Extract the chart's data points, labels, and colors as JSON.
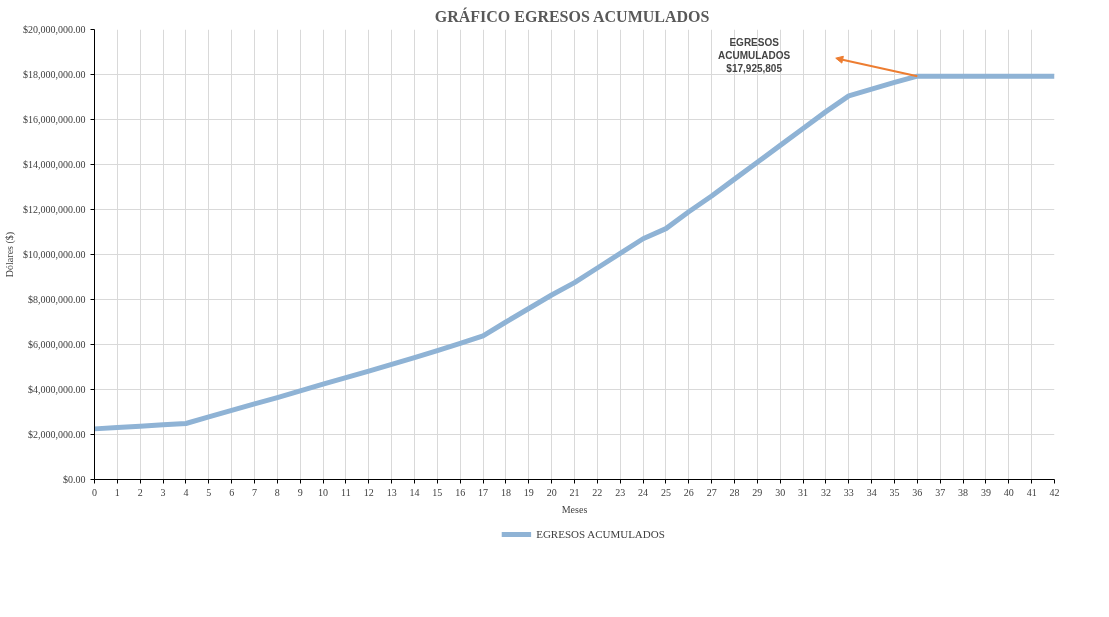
{
  "chart_data": {
    "type": "line",
    "title": "GRÁFICO EGRESOS  ACUMULADOS",
    "xlabel": "Meses",
    "ylabel": "Dólares ($)",
    "x": [
      0,
      1,
      2,
      3,
      4,
      5,
      6,
      7,
      8,
      9,
      10,
      11,
      12,
      13,
      14,
      15,
      16,
      17,
      18,
      19,
      20,
      21,
      22,
      23,
      24,
      25,
      26,
      27,
      28,
      29,
      30,
      31,
      32,
      33,
      34,
      35,
      36,
      37,
      38,
      39,
      40,
      41,
      42
    ],
    "series": [
      {
        "name": "EGRESOS ACUMULADOS",
        "color": "#8fb3d5",
        "values": [
          2250000,
          2310000,
          2370000,
          2430000,
          2490000,
          2780000,
          3070000,
          3360000,
          3640000,
          3940000,
          4240000,
          4530000,
          4820000,
          5120000,
          5420000,
          5730000,
          6050000,
          6380000,
          7000000,
          7600000,
          8200000,
          8750000,
          9400000,
          10050000,
          10700000,
          11150000,
          11900000,
          12600000,
          13350000,
          14100000,
          14850000,
          15600000,
          16350000,
          17050000,
          17350000,
          17650000,
          17925805,
          17925805,
          17925805,
          17925805,
          17925805,
          17925805,
          17925805
        ]
      }
    ],
    "xlim": [
      0,
      42
    ],
    "ylim": [
      0,
      20000000
    ],
    "xticks": [
      0,
      1,
      2,
      3,
      4,
      5,
      6,
      7,
      8,
      9,
      10,
      11,
      12,
      13,
      14,
      15,
      16,
      17,
      18,
      19,
      20,
      21,
      22,
      23,
      24,
      25,
      26,
      27,
      28,
      29,
      30,
      31,
      32,
      33,
      34,
      35,
      36,
      37,
      38,
      39,
      40,
      41,
      42
    ],
    "yticks": [
      {
        "value": 0,
        "label": "$0.00"
      },
      {
        "value": 2000000,
        "label": "$2,000,000.00"
      },
      {
        "value": 4000000,
        "label": "$4,000,000.00"
      },
      {
        "value": 6000000,
        "label": "$6,000,000.00"
      },
      {
        "value": 8000000,
        "label": "$8,000,000.00"
      },
      {
        "value": 10000000,
        "label": "$10,000,000.00"
      },
      {
        "value": 12000000,
        "label": "$12,000,000.00"
      },
      {
        "value": 14000000,
        "label": "$14,000,000.00"
      },
      {
        "value": 16000000,
        "label": "$16,000,000.00"
      },
      {
        "value": 18000000,
        "label": "$18,000,000.00"
      },
      {
        "value": 20000000,
        "label": "$20,000,000.00"
      }
    ],
    "annotations": [
      "EGRESOS\nACUMULADOS\n$17,925,805"
    ],
    "grid": true,
    "legend": "bottom",
    "marker": "none",
    "line_style": "solid"
  }
}
